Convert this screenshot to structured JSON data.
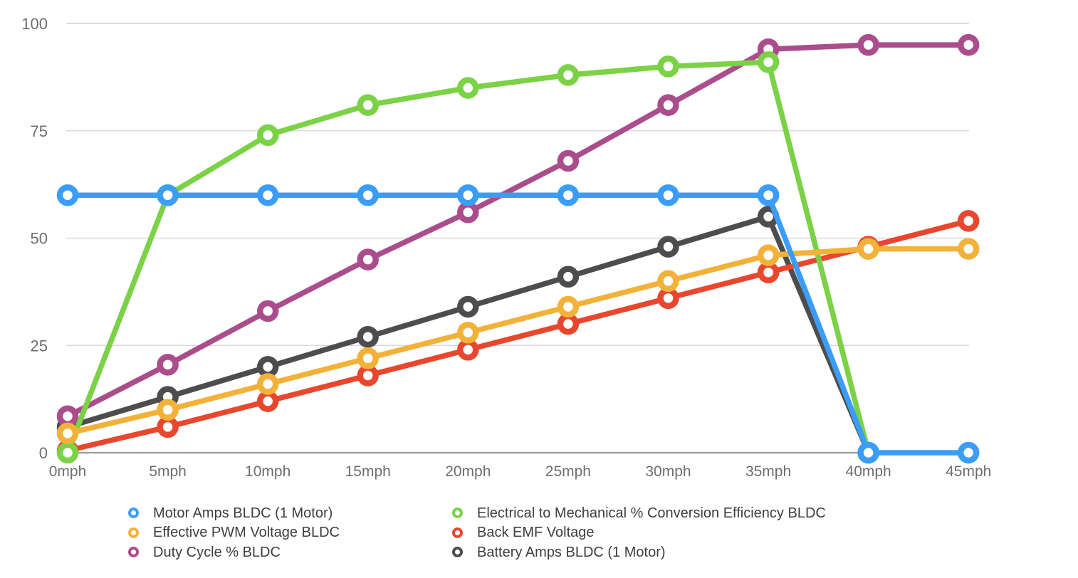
{
  "chart_data": {
    "type": "line",
    "title": "",
    "xlabel": "",
    "ylabel": "",
    "categories": [
      "0mph",
      "5mph",
      "10mph",
      "15mph",
      "20mph",
      "25mph",
      "30mph",
      "35mph",
      "40mph",
      "45mph"
    ],
    "series": [
      {
        "name": "Motor Amps BLDC (1 Motor)",
        "color": "#3b9df8",
        "legend_column": "left",
        "values": [
          60,
          60,
          60,
          60,
          60,
          60,
          60,
          60,
          0,
          0
        ]
      },
      {
        "name": "Effective PWM Voltage BLDC",
        "color": "#f2b239",
        "legend_column": "left",
        "values": [
          4.5,
          10,
          16,
          22,
          28,
          34,
          40,
          46,
          47.5,
          47.5
        ]
      },
      {
        "name": "Duty Cycle % BLDC",
        "color": "#ab4d8c",
        "legend_column": "left",
        "values": [
          8.5,
          20.5,
          33,
          45,
          56,
          68,
          81,
          94,
          95,
          95
        ]
      },
      {
        "name": "Electrical to Mechanical % Conversion Efficiency BLDC",
        "color": "#7bd246",
        "legend_column": "right",
        "values": [
          0,
          60,
          74,
          81,
          85,
          88,
          90,
          91,
          0,
          null
        ]
      },
      {
        "name": "Back EMF Voltage",
        "color": "#e8472e",
        "legend_column": "right",
        "values": [
          0.5,
          6,
          12,
          18,
          24,
          30,
          36,
          42,
          48,
          54
        ]
      },
      {
        "name": "Battery Amps BLDC (1 Motor)",
        "color": "#4d4d4d",
        "legend_column": "right",
        "values": [
          6,
          13,
          20,
          27,
          34,
          41,
          48,
          55,
          0,
          null
        ]
      }
    ],
    "yticks": [
      0,
      25,
      50,
      75,
      100
    ],
    "ylim": [
      0,
      100
    ],
    "grid": true,
    "legend_position": "bottom",
    "draw_order": [
      5,
      4,
      2,
      3,
      1,
      0
    ]
  }
}
